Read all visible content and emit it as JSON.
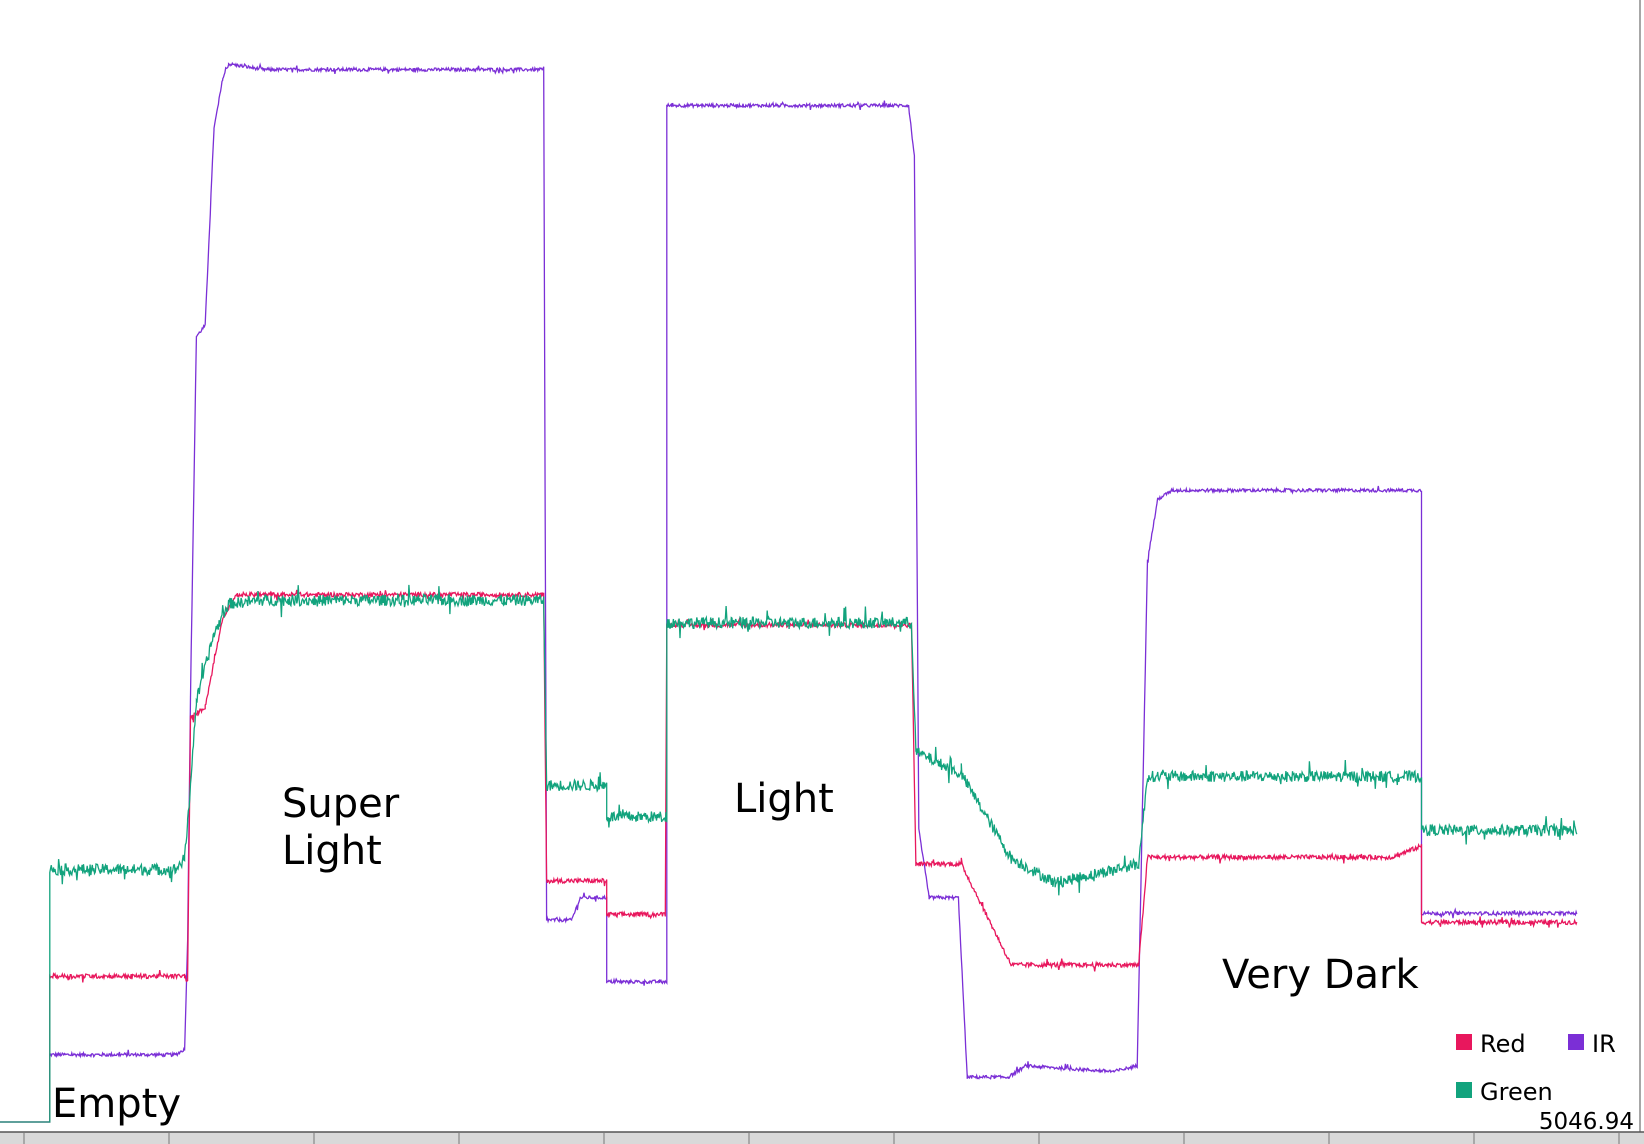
{
  "chart_data": {
    "type": "line",
    "ylim": [
      0,
      1000
    ],
    "xlim": [
      0,
      1100
    ],
    "grid": false,
    "legend_position": "bottom-right",
    "readout": "5046.94",
    "series": [
      {
        "name": "Red",
        "color": "#e8175d",
        "noise": 2,
        "points": [
          [
            0,
            0
          ],
          [
            34,
            0
          ],
          [
            34,
            130
          ],
          [
            126,
            130
          ],
          [
            128,
            125
          ],
          [
            130,
            360
          ],
          [
            140,
            370
          ],
          [
            152,
            450
          ],
          [
            162,
            470
          ],
          [
            180,
            470
          ],
          [
            371,
            470
          ],
          [
            373,
            215
          ],
          [
            404,
            215
          ],
          [
            414,
            215
          ],
          [
            414,
            185
          ],
          [
            454,
            185
          ],
          [
            455,
            443
          ],
          [
            622,
            443
          ],
          [
            625,
            230
          ],
          [
            656,
            230
          ],
          [
            690,
            140
          ],
          [
            777,
            140
          ],
          [
            783,
            236
          ],
          [
            950,
            236
          ],
          [
            970,
            246
          ],
          [
            970,
            178
          ],
          [
            1076,
            178
          ]
        ]
      },
      {
        "name": "IR",
        "color": "#7b2fd6",
        "noise": 1.5,
        "points": [
          [
            0,
            0
          ],
          [
            34,
            0
          ],
          [
            34,
            60
          ],
          [
            120,
            60
          ],
          [
            126,
            65
          ],
          [
            128,
            160
          ],
          [
            130,
            380
          ],
          [
            134,
            700
          ],
          [
            140,
            710
          ],
          [
            146,
            885
          ],
          [
            152,
            930
          ],
          [
            156,
            943
          ],
          [
            180,
            938
          ],
          [
            200,
            938
          ],
          [
            371,
            938
          ],
          [
            373,
            180
          ],
          [
            390,
            180
          ],
          [
            396,
            200
          ],
          [
            414,
            200
          ],
          [
            414,
            125
          ],
          [
            430,
            125
          ],
          [
            450,
            125
          ],
          [
            455,
            125
          ],
          [
            455,
            906
          ],
          [
            620,
            906
          ],
          [
            624,
            860
          ],
          [
            627,
            260
          ],
          [
            634,
            200
          ],
          [
            654,
            200
          ],
          [
            660,
            40
          ],
          [
            688,
            40
          ],
          [
            700,
            50
          ],
          [
            760,
            45
          ],
          [
            776,
            50
          ],
          [
            783,
            500
          ],
          [
            790,
            555
          ],
          [
            800,
            563
          ],
          [
            950,
            563
          ],
          [
            970,
            563
          ],
          [
            970,
            186
          ],
          [
            1076,
            186
          ]
        ]
      },
      {
        "name": "Green",
        "color": "#12a37d",
        "noise": 5,
        "points": [
          [
            0,
            0
          ],
          [
            34,
            0
          ],
          [
            34,
            225
          ],
          [
            120,
            225
          ],
          [
            126,
            235
          ],
          [
            128,
            265
          ],
          [
            134,
            375
          ],
          [
            146,
            435
          ],
          [
            156,
            462
          ],
          [
            180,
            465
          ],
          [
            371,
            465
          ],
          [
            373,
            300
          ],
          [
            414,
            300
          ],
          [
            414,
            272
          ],
          [
            455,
            272
          ],
          [
            455,
            445
          ],
          [
            622,
            445
          ],
          [
            625,
            330
          ],
          [
            656,
            310
          ],
          [
            690,
            235
          ],
          [
            720,
            213
          ],
          [
            760,
            225
          ],
          [
            777,
            230
          ],
          [
            783,
            308
          ],
          [
            950,
            308
          ],
          [
            970,
            308
          ],
          [
            970,
            260
          ],
          [
            1076,
            260
          ]
        ]
      }
    ],
    "annotations": [
      {
        "text": "Empty",
        "x": 35,
        "y": 15
      },
      {
        "text": "Super",
        "x": 188,
        "y": 306
      },
      {
        "text": "Light",
        "x": 188,
        "y": 264
      },
      {
        "text": "Light",
        "x": 490,
        "y": 310
      },
      {
        "text": "Very Dark",
        "x": 817,
        "y": 155
      }
    ],
    "legend": [
      {
        "label": "Red",
        "color": "#e8175d"
      },
      {
        "label": "IR",
        "color": "#7b2fd6"
      },
      {
        "label": "Green",
        "color": "#12a37d"
      }
    ]
  }
}
